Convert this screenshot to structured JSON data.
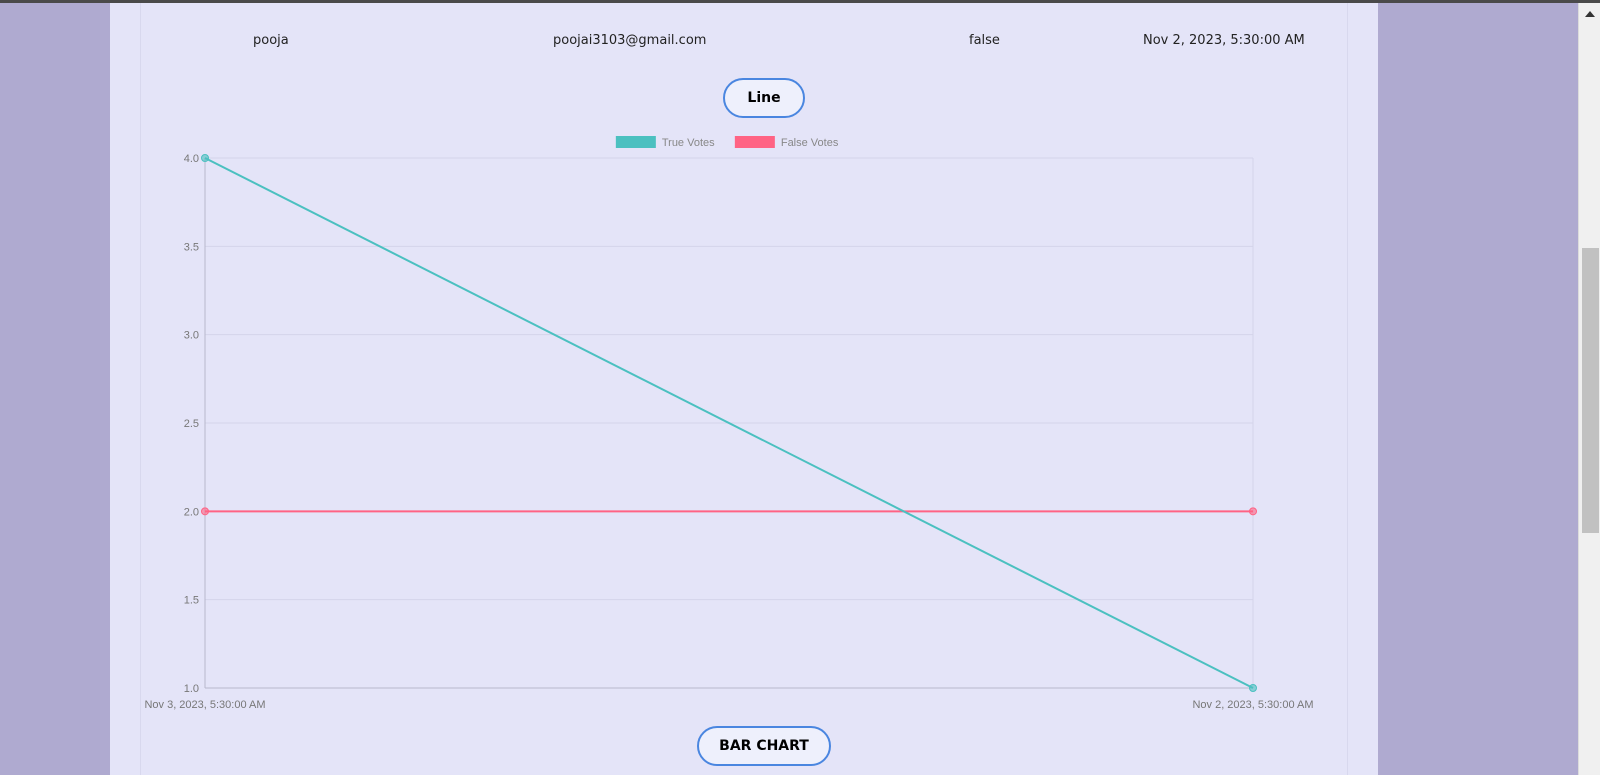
{
  "table_row": {
    "name": "pooja",
    "email": "poojai3103@gmail.com",
    "vote": "false",
    "date": "Nov 2, 2023, 5:30:00 AM"
  },
  "buttons": {
    "line_label": "Line",
    "bar_chart_label": "BAR CHART"
  },
  "chart_data": {
    "type": "line",
    "x": [
      "Nov 3, 2023, 5:30:00 AM",
      "Nov 2, 2023, 5:30:00 AM"
    ],
    "series": [
      {
        "name": "True Votes",
        "values": [
          4,
          1
        ],
        "color": "#4bc0c0"
      },
      {
        "name": "False Votes",
        "values": [
          2,
          2
        ],
        "color": "#ff6384"
      }
    ],
    "ylim": [
      1,
      4
    ],
    "yticks": [
      "4.0",
      "3.5",
      "3.0",
      "2.5",
      "2.0",
      "1.5",
      "1.0"
    ],
    "legend": "top",
    "grid": true
  }
}
